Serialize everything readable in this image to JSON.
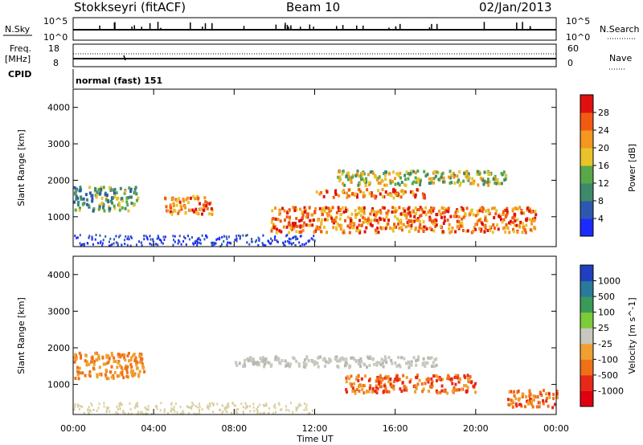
{
  "header": {
    "station": "Stokkseyri (fitACF)",
    "beam": "Beam 10",
    "date": "02/Jan/2013"
  },
  "left_labels": {
    "nsky": "N.Sky",
    "nsky_hi": "10^5",
    "nsky_lo": "10^0",
    "freq": "Freq.",
    "freq_unit": "[MHz]",
    "freq_hi": "18",
    "freq_lo": "8",
    "cpid": "CPID"
  },
  "right_labels": {
    "nsearch": "N.Search",
    "nsearch_hi": "10^5",
    "nsearch_lo": "10^0",
    "nave": "Nave",
    "nave_hi": "60",
    "nave_lo": "0"
  },
  "cpid_text": "normal (fast) 151",
  "time_axis": {
    "label": "Time UT",
    "ticks": [
      "00:00",
      "04:00",
      "08:00",
      "12:00",
      "16:00",
      "20:00",
      "00:00"
    ]
  },
  "range_axis": {
    "label": "Slant Range [km]",
    "ticks": [
      "1000",
      "2000",
      "3000",
      "4000"
    ]
  },
  "power_colorbar": {
    "label": "Power [dB]",
    "ticks": [
      "4",
      "8",
      "12",
      "16",
      "20",
      "24",
      "28"
    ],
    "colors": [
      "#1a2bff",
      "#2e58b0",
      "#3d8a6a",
      "#58a84a",
      "#e8c42a",
      "#f5961e",
      "#f25a12",
      "#e01010"
    ]
  },
  "velocity_colorbar": {
    "label": "Velocity [m s^-1]",
    "ticks": [
      "1000",
      "500",
      "100",
      "25",
      "-25",
      "-100",
      "-500",
      "-1000"
    ],
    "colors": [
      "#2040c0",
      "#2a7a9a",
      "#3a9a5a",
      "#7ccc3a",
      "#c8c8c0",
      "#f0a030",
      "#f07018",
      "#e82818",
      "#e00010"
    ]
  },
  "chart_data": {
    "type": "heatmap",
    "x_range_hours": [
      0,
      24
    ],
    "y_range_km": [
      180,
      4500
    ],
    "power_echo_regions": [
      {
        "t0": 0.0,
        "t1": 3.2,
        "r0": 1200,
        "r1": 1850,
        "level": "low-mid"
      },
      {
        "t0": 4.5,
        "t1": 6.9,
        "r0": 1100,
        "r1": 1600,
        "level": "high"
      },
      {
        "t0": 9.8,
        "t1": 23.0,
        "r0": 600,
        "r1": 1300,
        "level": "high"
      },
      {
        "t0": 12.0,
        "t1": 17.5,
        "r0": 1550,
        "r1": 1800,
        "level": "high"
      },
      {
        "t0": 13.0,
        "t1": 21.5,
        "r0": 1900,
        "r1": 2300,
        "level": "mid"
      }
    ],
    "velocity_echo_regions": [
      {
        "t0": 0.0,
        "t1": 3.5,
        "r0": 1200,
        "r1": 1900,
        "velocity": "-100"
      },
      {
        "t0": 8.0,
        "t1": 18.0,
        "r0": 1500,
        "r1": 1800,
        "velocity": "~0"
      },
      {
        "t0": 13.5,
        "t1": 20.0,
        "r0": 800,
        "r1": 1300,
        "velocity": "-500"
      },
      {
        "t0": 21.5,
        "t1": 24.0,
        "r0": 400,
        "r1": 900,
        "velocity": "-500"
      }
    ]
  }
}
